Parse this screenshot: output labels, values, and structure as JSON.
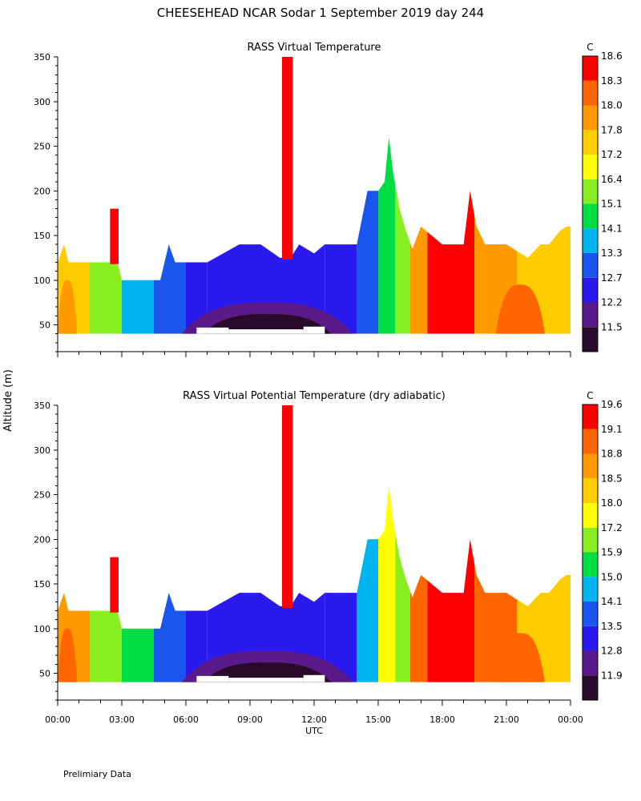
{
  "header": {
    "title": "CHEESEHEAD   NCAR Sodar    1 September 2019   day 244"
  },
  "footer": {
    "note": "Prelimiary Data"
  },
  "chart_data": [
    {
      "type": "heatmap",
      "title": "RASS Virtual Temperature",
      "xlabel": "UTC",
      "ylabel": "Altitude (m)",
      "unit_label": "C",
      "x_ticks": [
        "00:00",
        "03:00",
        "06:00",
        "09:00",
        "12:00",
        "15:00",
        "18:00",
        "21:00",
        "00:00"
      ],
      "x_range_hours": [
        0,
        24
      ],
      "y_ticks": [
        50,
        100,
        150,
        200,
        250,
        300,
        350
      ],
      "ylim": [
        20,
        350
      ],
      "colorbar": {
        "labels": [
          "11.5",
          "12.2",
          "12.7",
          "13.3",
          "14.1",
          "15.1",
          "16.4",
          "17.2",
          "17.8",
          "18.0",
          "18.3",
          "18.6"
        ],
        "colors": [
          "#2a0a2a",
          "#5a1a8a",
          "#2a1aee",
          "#1a55ee",
          "#00b4f0",
          "#00dd44",
          "#88ee22",
          "#ffff00",
          "#ffcc00",
          "#ff9900",
          "#ff6600",
          "#ff0000"
        ]
      },
      "valid_bottom_m": 40,
      "top_profile": {
        "hours": [
          0,
          0.3,
          0.5,
          0.7,
          2.4,
          2.8,
          3.0,
          4.8,
          5.0,
          5.2,
          5.5,
          6.0,
          7.0,
          8.5,
          9.5,
          10.4,
          10.9,
          11.3,
          12.0,
          12.5,
          13.0,
          14.0,
          14.5,
          15.0,
          15.3,
          15.5,
          15.7,
          16.0,
          16.3,
          16.6,
          17.0,
          18.0,
          19.0,
          19.3,
          19.6,
          20.0,
          21.0,
          22.0,
          22.6,
          23.0,
          23.5,
          23.8,
          24
        ],
        "alt_m": [
          120,
          140,
          120,
          120,
          120,
          120,
          100,
          100,
          120,
          140,
          120,
          120,
          120,
          140,
          140,
          125,
          125,
          140,
          130,
          140,
          140,
          140,
          200,
          200,
          210,
          260,
          220,
          180,
          155,
          135,
          160,
          140,
          140,
          200,
          160,
          140,
          140,
          125,
          140,
          140,
          155,
          160,
          160
        ]
      },
      "base_gap_m": [
        [
          6.5,
          8.0,
          47
        ],
        [
          8.0,
          11.5,
          45
        ],
        [
          11.5,
          12.5,
          48
        ]
      ],
      "spikes": [
        {
          "start_hour": 2.45,
          "end_hour": 2.85,
          "top_m": 180,
          "value": "18.6"
        },
        {
          "start_hour": 10.5,
          "end_hour": 11.0,
          "top_m": 350,
          "value": "18.6"
        }
      ],
      "segments": [
        {
          "start_hour": 0.0,
          "end_hour": 1.5,
          "value": "17.8"
        },
        {
          "start_hour": 1.5,
          "end_hour": 3.0,
          "value": "16.4"
        },
        {
          "start_hour": 3.0,
          "end_hour": 4.5,
          "value": "14.1"
        },
        {
          "start_hour": 4.5,
          "end_hour": 6.0,
          "value": "13.3"
        },
        {
          "start_hour": 6.0,
          "end_hour": 7.0,
          "value": "12.7"
        },
        {
          "start_hour": 7.0,
          "end_hour": 12.5,
          "value": "12.7"
        },
        {
          "start_hour": 12.5,
          "end_hour": 14.0,
          "value": "12.7"
        },
        {
          "start_hour": 14.0,
          "end_hour": 15.0,
          "value": "13.3"
        },
        {
          "start_hour": 15.0,
          "end_hour": 15.8,
          "value": "15.1"
        },
        {
          "start_hour": 15.8,
          "end_hour": 16.5,
          "value": "16.4"
        },
        {
          "start_hour": 16.5,
          "end_hour": 17.3,
          "value": "18.0"
        },
        {
          "start_hour": 17.3,
          "end_hour": 19.5,
          "value": "18.6"
        },
        {
          "start_hour": 19.5,
          "end_hour": 21.5,
          "value": "18.0"
        },
        {
          "start_hour": 21.5,
          "end_hour": 24.0,
          "value": "17.8"
        }
      ],
      "cores": [
        {
          "start_hour": 5.8,
          "end_hour": 13.8,
          "top_m": 75,
          "value": "12.2"
        },
        {
          "start_hour": 6.8,
          "end_hour": 12.8,
          "top_m": 62,
          "value": "11.5"
        },
        {
          "start_hour": 0.0,
          "end_hour": 0.9,
          "top_m": 100,
          "value": "18.0"
        },
        {
          "start_hour": 20.5,
          "end_hour": 22.8,
          "top_m": 95,
          "value": "18.3"
        }
      ]
    },
    {
      "type": "heatmap",
      "title": "RASS Virtual Potential Temperature (dry adiabatic)",
      "xlabel": "UTC",
      "ylabel": "Altitude (m)",
      "unit_label": "C",
      "x_ticks": [
        "00:00",
        "03:00",
        "06:00",
        "09:00",
        "12:00",
        "15:00",
        "18:00",
        "21:00",
        "00:00"
      ],
      "x_range_hours": [
        0,
        24
      ],
      "y_ticks": [
        50,
        100,
        150,
        200,
        250,
        300,
        350
      ],
      "ylim": [
        20,
        350
      ],
      "colorbar": {
        "labels": [
          "11.9",
          "12.8",
          "13.5",
          "14.1",
          "15.0",
          "15.9",
          "17.2",
          "18.0",
          "18.5",
          "18.8",
          "19.1",
          "19.6"
        ],
        "colors": [
          "#2a0a2a",
          "#5a1a8a",
          "#2a1aee",
          "#1a55ee",
          "#00b4f0",
          "#00dd44",
          "#88ee22",
          "#ffff00",
          "#ffcc00",
          "#ff9900",
          "#ff6600",
          "#ff0000"
        ]
      },
      "valid_bottom_m": 40,
      "top_profile": {
        "hours": [
          0,
          0.3,
          0.5,
          0.7,
          2.4,
          2.8,
          3.0,
          4.8,
          5.0,
          5.2,
          5.5,
          6.0,
          7.0,
          8.5,
          9.5,
          10.4,
          10.9,
          11.3,
          12.0,
          12.5,
          13.0,
          14.0,
          14.5,
          15.0,
          15.3,
          15.5,
          15.7,
          16.0,
          16.3,
          16.6,
          17.0,
          18.0,
          19.0,
          19.3,
          19.6,
          20.0,
          21.0,
          22.0,
          22.6,
          23.0,
          23.5,
          23.8,
          24
        ],
        "alt_m": [
          120,
          140,
          120,
          120,
          120,
          120,
          100,
          100,
          120,
          140,
          120,
          120,
          120,
          140,
          140,
          125,
          125,
          140,
          130,
          140,
          140,
          140,
          200,
          200,
          210,
          260,
          220,
          180,
          155,
          135,
          160,
          140,
          140,
          200,
          160,
          140,
          140,
          125,
          140,
          140,
          155,
          160,
          160
        ]
      },
      "base_gap_m": [
        [
          6.5,
          8.0,
          47
        ],
        [
          8.0,
          11.5,
          45
        ],
        [
          11.5,
          12.5,
          48
        ]
      ],
      "spikes": [
        {
          "start_hour": 2.45,
          "end_hour": 2.85,
          "top_m": 180,
          "value": "19.6"
        },
        {
          "start_hour": 10.5,
          "end_hour": 11.0,
          "top_m": 350,
          "value": "19.6"
        }
      ],
      "segments": [
        {
          "start_hour": 0.0,
          "end_hour": 1.5,
          "value": "18.8"
        },
        {
          "start_hour": 1.5,
          "end_hour": 3.0,
          "value": "17.2"
        },
        {
          "start_hour": 3.0,
          "end_hour": 4.5,
          "value": "15.9"
        },
        {
          "start_hour": 4.5,
          "end_hour": 6.0,
          "value": "14.1"
        },
        {
          "start_hour": 6.0,
          "end_hour": 7.0,
          "value": "13.5"
        },
        {
          "start_hour": 7.0,
          "end_hour": 12.5,
          "value": "13.5"
        },
        {
          "start_hour": 12.5,
          "end_hour": 14.0,
          "value": "13.5"
        },
        {
          "start_hour": 14.0,
          "end_hour": 15.0,
          "value": "15.0"
        },
        {
          "start_hour": 15.0,
          "end_hour": 15.8,
          "value": "18.0"
        },
        {
          "start_hour": 15.8,
          "end_hour": 16.5,
          "value": "17.2"
        },
        {
          "start_hour": 16.5,
          "end_hour": 17.3,
          "value": "19.1"
        },
        {
          "start_hour": 17.3,
          "end_hour": 19.5,
          "value": "19.6"
        },
        {
          "start_hour": 19.5,
          "end_hour": 21.5,
          "value": "19.1"
        },
        {
          "start_hour": 21.5,
          "end_hour": 24.0,
          "value": "18.5"
        }
      ],
      "cores": [
        {
          "start_hour": 5.8,
          "end_hour": 13.8,
          "top_m": 75,
          "value": "12.8"
        },
        {
          "start_hour": 6.8,
          "end_hour": 12.8,
          "top_m": 62,
          "value": "11.9"
        },
        {
          "start_hour": 0.0,
          "end_hour": 0.9,
          "top_m": 100,
          "value": "19.1"
        },
        {
          "start_hour": 20.5,
          "end_hour": 22.8,
          "top_m": 95,
          "value": "19.1"
        }
      ]
    }
  ]
}
